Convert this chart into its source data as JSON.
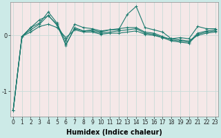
{
  "xlabel": "Humidex (Indice chaleur)",
  "bg_color": "#cceae7",
  "plot_bg_color": "#f5e8e8",
  "line_color": "#1a7a6e",
  "x": [
    0,
    1,
    2,
    3,
    4,
    5,
    6,
    7,
    8,
    9,
    10,
    11,
    12,
    13,
    14,
    15,
    16,
    17,
    18,
    19,
    20,
    21,
    22,
    23
  ],
  "lines": [
    [
      -1.35,
      -0.02,
      0.14,
      0.22,
      0.42,
      0.22,
      -0.18,
      0.14,
      0.08,
      0.1,
      0.06,
      0.1,
      0.1,
      0.38,
      0.52,
      0.14,
      0.1,
      0.06,
      -0.06,
      -0.04,
      -0.06,
      0.16,
      0.12,
      0.12
    ],
    [
      -1.35,
      -0.02,
      0.14,
      0.28,
      0.35,
      0.2,
      -0.1,
      0.2,
      0.14,
      0.12,
      0.08,
      0.1,
      0.12,
      0.14,
      0.14,
      0.06,
      0.04,
      -0.02,
      -0.08,
      -0.1,
      -0.12,
      0.04,
      0.08,
      0.1
    ],
    [
      -1.35,
      -0.02,
      0.1,
      0.2,
      0.36,
      0.18,
      -0.16,
      0.12,
      0.08,
      0.08,
      0.04,
      0.06,
      0.08,
      0.1,
      0.12,
      0.04,
      0.02,
      -0.04,
      -0.1,
      -0.12,
      -0.14,
      0.02,
      0.06,
      0.08
    ],
    [
      -1.35,
      -0.02,
      0.06,
      0.16,
      0.2,
      0.14,
      -0.04,
      0.1,
      0.06,
      0.06,
      0.02,
      0.04,
      0.04,
      0.06,
      0.08,
      0.02,
      0.0,
      -0.04,
      -0.06,
      -0.08,
      -0.1,
      0.0,
      0.04,
      0.06
    ]
  ],
  "line_styles": [
    "-",
    "-",
    "-",
    "-"
  ],
  "ylim": [
    -1.45,
    0.6
  ],
  "yticks": [
    -1,
    0
  ],
  "ytick_labels": [
    "-1",
    "0"
  ],
  "xlim": [
    -0.3,
    23.3
  ],
  "grid_color": "#c8dcd8",
  "figsize": [
    3.2,
    2.0
  ],
  "dpi": 100,
  "tick_fontsize": 5.5,
  "xlabel_fontsize": 7
}
